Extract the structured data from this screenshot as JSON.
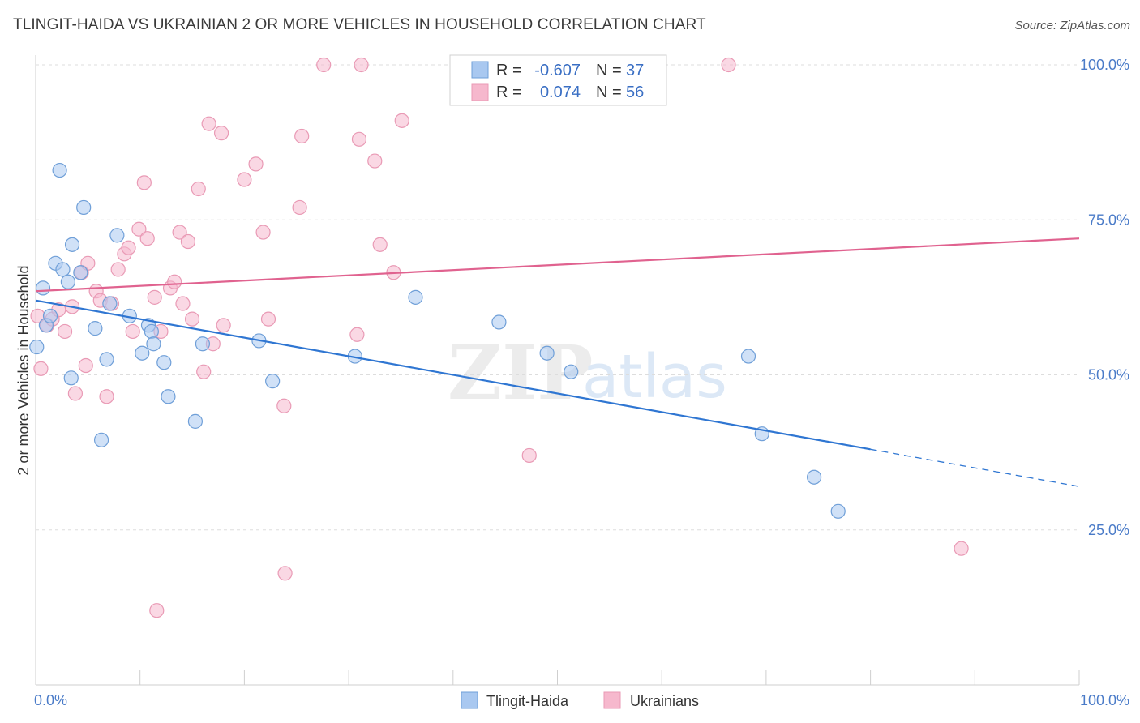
{
  "title": "TLINGIT-HAIDA VS UKRAINIAN 2 OR MORE VEHICLES IN HOUSEHOLD CORRELATION CHART",
  "source": "Source: ZipAtlas.com",
  "watermark": {
    "zip": "ZIP",
    "atlas": "atlas"
  },
  "colors": {
    "blue_fill": "#a9c8f0",
    "blue_stroke": "#6f9fd8",
    "blue_line": "#2f76d2",
    "pink_fill": "#f6b8cd",
    "pink_stroke": "#e99ab5",
    "pink_line": "#e0628f",
    "tick_text": "#4a7bc8",
    "grid": "#dddddd"
  },
  "legend": {
    "rows": [
      {
        "series": "Tlingit-Haida",
        "r_label": "R =",
        "r_value": "-0.607",
        "n_label": "N =",
        "n_value": "37"
      },
      {
        "series": "Ukrainians",
        "r_label": "R =",
        "r_value": "0.074",
        "n_label": "N =",
        "n_value": "56"
      }
    ]
  },
  "chart_data": {
    "type": "scatter",
    "title": "TLINGIT-HAIDA VS UKRAINIAN 2 OR MORE VEHICLES IN HOUSEHOLD CORRELATION CHART",
    "xlabel": "",
    "ylabel": "2 or more Vehicles in Household",
    "xlim": [
      0,
      100
    ],
    "ylim": [
      0,
      100
    ],
    "x_tick_labels": [
      {
        "value": 0,
        "label": "0.0%"
      },
      {
        "value": 100,
        "label": "100.0%"
      }
    ],
    "y_tick_labels": [
      {
        "value": 25,
        "label": "25.0%"
      },
      {
        "value": 50,
        "label": "50.0%"
      },
      {
        "value": 75,
        "label": "75.0%"
      },
      {
        "value": 100,
        "label": "100.0%"
      }
    ],
    "grid": true,
    "legend_position": "top-center",
    "series": [
      {
        "name": "Tlingit-Haida",
        "color": "#a9c8f0",
        "r": -0.607,
        "n": 37,
        "trend": {
          "x0": 0,
          "y0": 62.0,
          "x1": 80,
          "y1": 38.0,
          "dashed_to_x": 100,
          "dashed_to_y": 32.0
        },
        "points": [
          [
            0.1,
            54.5
          ],
          [
            0.7,
            64.0
          ],
          [
            1.0,
            58.0
          ],
          [
            1.4,
            59.5
          ],
          [
            1.9,
            68.0
          ],
          [
            2.3,
            83.0
          ],
          [
            2.6,
            67.0
          ],
          [
            3.1,
            65.0
          ],
          [
            3.4,
            49.5
          ],
          [
            3.5,
            71.0
          ],
          [
            4.3,
            66.5
          ],
          [
            4.6,
            77.0
          ],
          [
            5.7,
            57.5
          ],
          [
            6.3,
            39.5
          ],
          [
            6.8,
            52.5
          ],
          [
            7.1,
            61.5
          ],
          [
            7.8,
            72.5
          ],
          [
            9.0,
            59.5
          ],
          [
            10.2,
            53.5
          ],
          [
            10.8,
            58.0
          ],
          [
            11.1,
            57.0
          ],
          [
            11.3,
            55.0
          ],
          [
            12.3,
            52.0
          ],
          [
            12.7,
            46.5
          ],
          [
            15.3,
            42.5
          ],
          [
            16.0,
            55.0
          ],
          [
            21.4,
            55.5
          ],
          [
            22.7,
            49.0
          ],
          [
            30.6,
            53.0
          ],
          [
            36.4,
            62.5
          ],
          [
            44.4,
            58.5
          ],
          [
            49.0,
            53.5
          ],
          [
            51.3,
            50.5
          ],
          [
            68.3,
            53.0
          ],
          [
            69.6,
            40.5
          ],
          [
            74.6,
            33.5
          ],
          [
            76.9,
            28.0
          ]
        ]
      },
      {
        "name": "Ukrainians",
        "color": "#f6b8cd",
        "r": 0.074,
        "n": 56,
        "trend": {
          "x0": 0,
          "y0": 63.5,
          "x1": 100,
          "y1": 72.0
        },
        "points": [
          [
            0.2,
            59.5
          ],
          [
            0.5,
            51.0
          ],
          [
            1.1,
            58.0
          ],
          [
            1.6,
            59.0
          ],
          [
            2.2,
            60.5
          ],
          [
            2.8,
            57.0
          ],
          [
            3.5,
            61.0
          ],
          [
            3.8,
            47.0
          ],
          [
            4.4,
            66.5
          ],
          [
            4.8,
            51.5
          ],
          [
            5.0,
            68.0
          ],
          [
            5.8,
            63.5
          ],
          [
            6.2,
            62.0
          ],
          [
            6.8,
            46.5
          ],
          [
            7.3,
            61.5
          ],
          [
            7.9,
            67.0
          ],
          [
            8.5,
            69.5
          ],
          [
            8.9,
            70.5
          ],
          [
            9.3,
            57.0
          ],
          [
            9.9,
            73.5
          ],
          [
            10.4,
            81.0
          ],
          [
            10.7,
            72.0
          ],
          [
            11.4,
            62.5
          ],
          [
            11.6,
            12.0
          ],
          [
            12.0,
            57.0
          ],
          [
            12.9,
            64.0
          ],
          [
            13.3,
            65.0
          ],
          [
            13.8,
            73.0
          ],
          [
            14.1,
            61.5
          ],
          [
            14.6,
            71.5
          ],
          [
            15.0,
            59.0
          ],
          [
            15.6,
            80.0
          ],
          [
            16.1,
            50.5
          ],
          [
            16.6,
            90.5
          ],
          [
            17.0,
            55.0
          ],
          [
            17.8,
            89.0
          ],
          [
            18.0,
            58.0
          ],
          [
            20.0,
            81.5
          ],
          [
            21.1,
            84.0
          ],
          [
            21.8,
            73.0
          ],
          [
            22.3,
            59.0
          ],
          [
            23.8,
            45.0
          ],
          [
            23.9,
            18.0
          ],
          [
            25.3,
            77.0
          ],
          [
            25.5,
            88.5
          ],
          [
            27.6,
            100.0
          ],
          [
            30.8,
            56.5
          ],
          [
            31.0,
            88.0
          ],
          [
            31.2,
            100.0
          ],
          [
            32.5,
            84.5
          ],
          [
            33.0,
            71.0
          ],
          [
            34.3,
            66.5
          ],
          [
            35.1,
            91.0
          ],
          [
            47.3,
            37.0
          ],
          [
            66.4,
            100.0
          ],
          [
            88.7,
            22.0
          ]
        ]
      }
    ]
  }
}
